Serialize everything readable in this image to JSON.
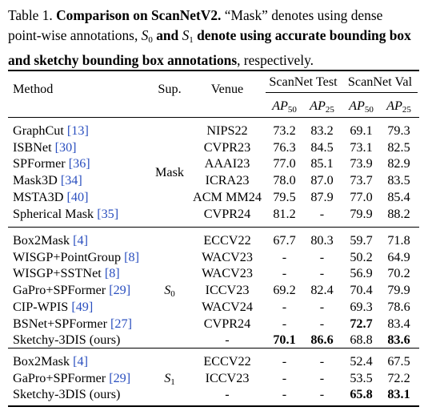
{
  "caption": {
    "label": "Table 1.",
    "title_bold": "Comparison on ScanNetV2.",
    "text1": " “Mask” denotes using dense point-wise annotations, ",
    "s0": "S",
    "s0_sub": "0",
    "and": " and ",
    "s1": "S",
    "s1_sub": "1",
    "text2_bold": " denote using accurate bounding box and sketchy bounding box annotations",
    "text3": ", respectively."
  },
  "header": {
    "method": "Method",
    "sup": "Sup.",
    "venue": "Venue",
    "group_test": "ScanNet Test",
    "group_val": "ScanNet Val",
    "ap": "AP",
    "sub50": "50",
    "sub25": "25"
  },
  "groups": [
    {
      "sup": "Mask",
      "rows": [
        {
          "method": "GraphCut ",
          "cite": "[13]",
          "venue": "NIPS22",
          "t50": "73.2",
          "t25": "83.2",
          "v50": "69.1",
          "v25": "79.3"
        },
        {
          "method": "ISBNet ",
          "cite": "[30]",
          "venue": "CVPR23",
          "t50": "76.3",
          "t25": "84.5",
          "v50": "73.1",
          "v25": "82.5"
        },
        {
          "method": "SPFormer ",
          "cite": "[36]",
          "venue": "AAAI23",
          "t50": "77.0",
          "t25": "85.1",
          "v50": "73.9",
          "v25": "82.9"
        },
        {
          "method": "Mask3D ",
          "cite": "[34]",
          "venue": "ICRA23",
          "t50": "78.0",
          "t25": "87.0",
          "v50": "73.7",
          "v25": "83.5"
        },
        {
          "method": "MSTA3D ",
          "cite": "[40]",
          "venue": "ACM MM24",
          "t50": "79.5",
          "t25": "87.9",
          "v50": "77.0",
          "v25": "85.4"
        },
        {
          "method": "Spherical Mask ",
          "cite": "[35]",
          "venue": "CVPR24",
          "t50": "81.2",
          "t25": "-",
          "v50": "79.9",
          "v25": "88.2"
        }
      ]
    },
    {
      "sup": "S",
      "sup_sub": "0",
      "rows": [
        {
          "method": "Box2Mask ",
          "cite": "[4]",
          "venue": "ECCV22",
          "t50": "67.7",
          "t25": "80.3",
          "v50": "59.7",
          "v25": "71.8"
        },
        {
          "method": "WISGP+PointGroup ",
          "cite": "[8]",
          "venue": "WACV23",
          "t50": "-",
          "t25": "-",
          "v50": "50.2",
          "v25": "64.9"
        },
        {
          "method": "WISGP+SSTNet ",
          "cite": "[8]",
          "venue": "WACV23",
          "t50": "-",
          "t25": "-",
          "v50": "56.9",
          "v25": "70.2"
        },
        {
          "method": "GaPro+SPFormer ",
          "cite": "[29]",
          "venue": "ICCV23",
          "t50": "69.2",
          "t25": "82.4",
          "v50": "70.4",
          "v25": "79.9"
        },
        {
          "method": "CIP-WPIS ",
          "cite": "[49]",
          "venue": "WACV24",
          "t50": "-",
          "t25": "-",
          "v50": "69.3",
          "v25": "78.6"
        },
        {
          "method": "BSNet+SPFormer ",
          "cite": "[27]",
          "venue": "CVPR24",
          "t50": "-",
          "t25": "-",
          "v50": "72.7",
          "v25": "83.4",
          "bold": [
            "v50"
          ]
        },
        {
          "method": "Sketchy-3DIS (ours)",
          "cite": "",
          "venue": "-",
          "t50": "70.1",
          "t25": "86.6",
          "v50": "68.8",
          "v25": "83.6",
          "bold": [
            "t50",
            "t25",
            "v25"
          ]
        }
      ]
    },
    {
      "sup": "S",
      "sup_sub": "1",
      "rows": [
        {
          "method": "Box2Mask ",
          "cite": "[4]",
          "venue": "ECCV22",
          "t50": "-",
          "t25": "-",
          "v50": "52.4",
          "v25": "67.5"
        },
        {
          "method": "GaPro+SPFormer ",
          "cite": "[29]",
          "venue": "ICCV23",
          "t50": "-",
          "t25": "-",
          "v50": "53.5",
          "v25": "72.2"
        },
        {
          "method": "Sketchy-3DIS (ours)",
          "cite": "",
          "venue": "-",
          "t50": "-",
          "t25": "-",
          "v50": "65.8",
          "v25": "83.1",
          "bold": [
            "v50",
            "v25"
          ]
        }
      ]
    }
  ]
}
